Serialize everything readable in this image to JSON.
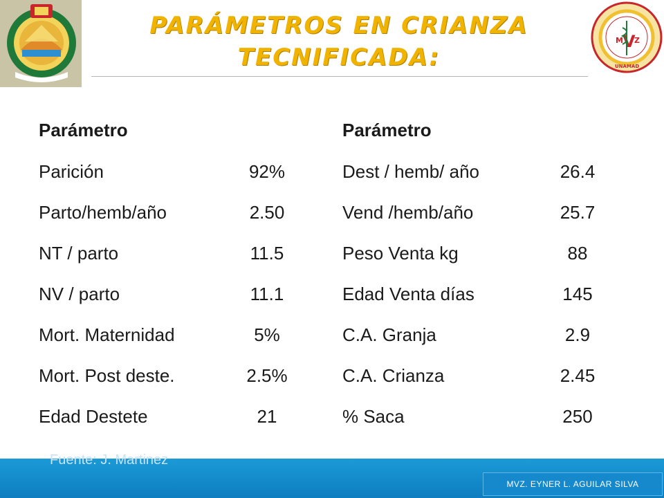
{
  "title": {
    "line1": "Parámetros en crianza",
    "line2": "tecnificada:"
  },
  "left_table": {
    "header": "Parámetro",
    "rows": [
      {
        "label": "Parición",
        "value": "92%"
      },
      {
        "label": "Parto/hemb/año",
        "value": "2.50"
      },
      {
        "label": "NT / parto",
        "value": "11.5"
      },
      {
        "label": "NV / parto",
        "value": "11.1"
      },
      {
        "label": "Mort. Maternidad",
        "value": "5%"
      },
      {
        "label": "Mort. Post deste.",
        "value": "2.5%"
      },
      {
        "label": "Edad Destete",
        "value": "21"
      }
    ]
  },
  "right_table": {
    "header": "Parámetro",
    "rows": [
      {
        "label": "Dest / hemb/ año",
        "value": "26.4"
      },
      {
        "label": "Vend /hemb/año",
        "value": "25.7"
      },
      {
        "label": "Peso Venta kg",
        "value": "88"
      },
      {
        "label": "Edad Venta días",
        "value": "145"
      },
      {
        "label": "C.A. Granja",
        "value": "2.9"
      },
      {
        "label": "C.A. Crianza",
        "value": "2.45"
      },
      {
        "label": "% Saca",
        "value": "250"
      }
    ]
  },
  "footer": {
    "source": "Fuente: J. Martinez",
    "author": "MVZ. EYNER L. AGUILAR SILVA"
  },
  "logos": {
    "left_ring_text": "UNIVERSIDAD NACIONAL AMAZÓNICA DE MADRE DE DIOS",
    "right_ring_text": "MEDICINA VETERINARIA Y ZOOTECNIA",
    "right_center_left": "M",
    "right_center_mid": "V",
    "right_center_right": "Z",
    "right_bottom": "UNAMAD"
  },
  "colors": {
    "title": "#f0b400",
    "footer": "#1b9ad6",
    "logo_green": "#1f7a3a",
    "logo_red": "#c8262b"
  }
}
